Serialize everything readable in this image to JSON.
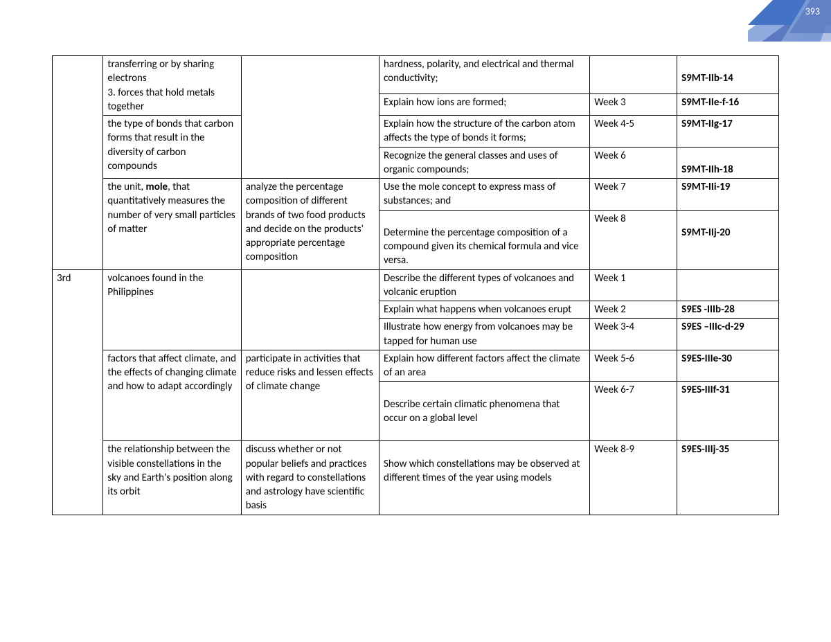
{
  "page_number": "393",
  "colors": {
    "corner_dark": "#4472c4",
    "corner_mid": "#5b79c1",
    "corner_light": "#8faadc",
    "text": "#000000",
    "page_num_text": "#ffffff",
    "border": "#000000",
    "background": "#ffffff"
  },
  "typography": {
    "font_family": "Calibri",
    "base_fontsize_pt": 11,
    "line_height": 1.35
  },
  "table": {
    "column_widths_pct": [
      7,
      19,
      19,
      29,
      12,
      14
    ],
    "rows": [
      {
        "q": "",
        "cs": "transferring or by sharing electrons\n3. forces that hold metals together",
        "ps": "",
        "lc": "hardness, polarity, and electrical and thermal conductivity;",
        "wk": "",
        "cd": "S9MT-IIb-14",
        "cd_bold": true,
        "span": {
          "q": "rowspan6",
          "cs": "rowspan1",
          "ps": "rowspan4"
        }
      },
      {
        "lc": "Explain how ions are formed;",
        "wk": "Week 3",
        "cd": "S9MT-IIe-f-16",
        "cd_bold": true
      },
      {
        "cs": "the type of bonds that carbon forms that result in the diversity of carbon compounds",
        "lc": "Explain how the structure of the carbon atom affects the type of bonds it forms;",
        "wk": "Week 4-5",
        "cd": "S9MT-IIg-17",
        "cd_bold": true
      },
      {
        "lc": "Recognize the general classes and uses of organic compounds;",
        "wk": "Week 6",
        "cd": "S9MT-IIh-18",
        "cd_bold": true
      },
      {
        "cs_html": "the unit, <b>mole</b>, that quantitatively measures the number of very small particles of matter",
        "ps": "analyze the percentage composition of different brands of two food products and decide on the products' appropriate percentage composition",
        "lc": "Use the mole concept to express mass of substances; and",
        "wk": "Week 7",
        "cd": "S9MT-IIi-19",
        "cd_bold": true
      },
      {
        "lc": "Determine the percentage composition of a compound given its chemical formula and vice versa.",
        "wk": "Week 8",
        "cd": "S9MT-IIj-20",
        "cd_bold": true
      },
      {
        "q": "3rd",
        "cs": "volcanoes found in the Philippines",
        "ps": "",
        "lc": "Describe the different types of volcanoes and volcanic eruption",
        "wk": "Week 1",
        "cd": "",
        "cd_bold": false
      },
      {
        "lc": "Explain what happens when volcanoes erupt",
        "wk": "Week 2",
        "cd": "S9ES -IIIb-28",
        "cd_bold": true
      },
      {
        "lc": "Illustrate how energy from volcanoes may be tapped for human use",
        "wk": "Week 3-4",
        "cd": "S9ES –IIIc-d-29",
        "cd_bold": true
      },
      {
        "cs": "factors that affect climate, and the effects of changing climate and how to adapt accordingly",
        "ps": "participate in activities that reduce risks and lessen effects of climate change",
        "lc": "Explain how different factors affect the climate of an area",
        "wk": "Week 5-6",
        "cd": "S9ES-IIIe-30",
        "cd_bold": true
      },
      {
        "lc": "Describe certain climatic phenomena that occur on a global level",
        "wk": "Week 6-7",
        "cd": "S9ES-IIIf-31",
        "cd_bold": true
      },
      {
        "cs": "the relationship between the visible constellations in the sky and Earth's position along its orbit",
        "ps": "discuss whether or not popular beliefs and practices with regard to constellations and astrology have scientific basis",
        "lc": "Show which constellations may be observed at different times of the year using models",
        "wk": "Week 8-9",
        "cd": "S9ES-IIIj-35",
        "cd_bold": true
      }
    ]
  }
}
